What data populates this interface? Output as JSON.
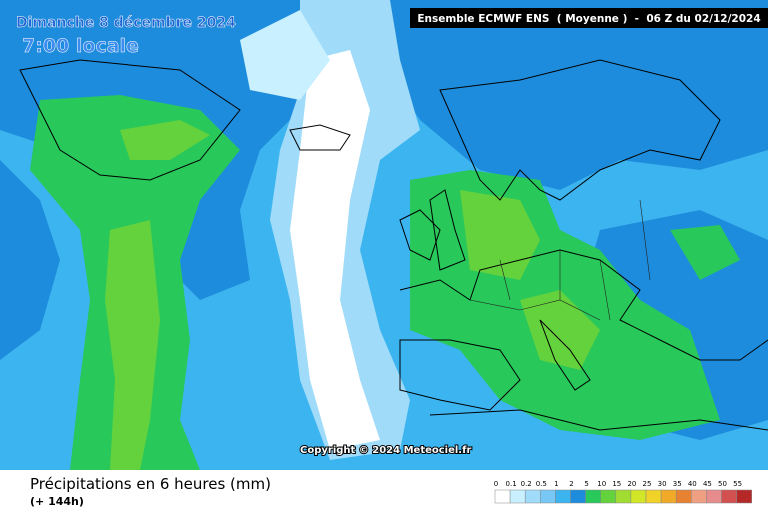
{
  "header": {
    "date": "Dimanche 8 décembre 2024",
    "time": "7:00 locale",
    "model": "Ensemble ECMWF ENS  ( Moyenne )  -  06 Z du 02/12/2024"
  },
  "map": {
    "copyright": "Copyright © 2024 Meteociel.fr"
  },
  "footer": {
    "title": "Précipitations en 6 heures (mm)",
    "lead": "(+ 144h)"
  },
  "legend": {
    "labels": [
      0,
      0.1,
      0.2,
      0.5,
      1,
      2,
      5,
      10,
      15,
      20,
      25,
      30,
      35,
      40,
      45,
      50,
      55
    ],
    "colors": [
      "#ffffff",
      "#c8f0ff",
      "#a0dcfa",
      "#78c8f5",
      "#3cb4f0",
      "#1e8cdc",
      "#28c85a",
      "#64d23c",
      "#a0dc32",
      "#d2e628",
      "#f0d228",
      "#f0aa28",
      "#e68232",
      "#f0a082",
      "#e68c8c",
      "#d25050",
      "#b42828"
    ]
  }
}
